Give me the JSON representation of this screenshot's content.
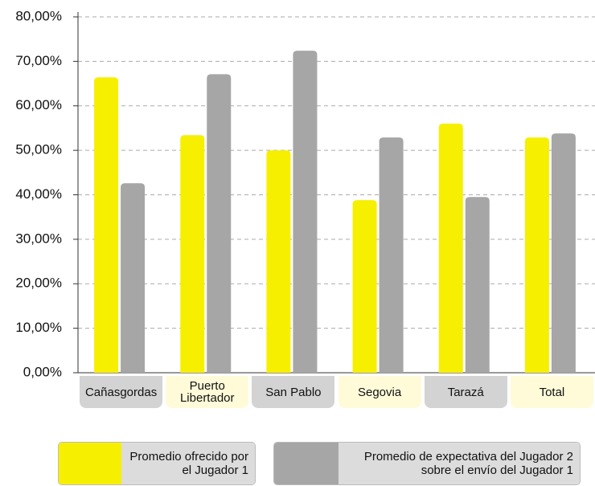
{
  "chart_data": {
    "type": "bar",
    "categories": [
      "Cañasgordas",
      "Puerto Libertador",
      "San Pablo",
      "Segovia",
      "Tarazá",
      "Total"
    ],
    "series": [
      {
        "name": "Promedio ofrecido por el Jugador 1",
        "color": "#f7ef00",
        "values": [
          66.4,
          53.4,
          50.0,
          38.8,
          56.0,
          52.9
        ]
      },
      {
        "name": "Promedio de expectativa del Jugador 2 sobre el envío del Jugador 1",
        "color": "#a6a6a6",
        "values": [
          42.6,
          67.1,
          72.4,
          52.9,
          39.5,
          53.8
        ]
      }
    ],
    "ylim": [
      0,
      80
    ],
    "yticks": [
      {
        "value": 0,
        "label": "0,00%"
      },
      {
        "value": 10,
        "label": "10,00%"
      },
      {
        "value": 20,
        "label": "20,00%"
      },
      {
        "value": 30,
        "label": "30,00%"
      },
      {
        "value": 40,
        "label": "40,00%"
      },
      {
        "value": 50,
        "label": "50,00%"
      },
      {
        "value": 60,
        "label": "60,00%"
      },
      {
        "value": 70,
        "label": "70,00%"
      },
      {
        "value": 80,
        "label": "80,00%"
      }
    ],
    "grid": true,
    "legend": "bottom"
  }
}
